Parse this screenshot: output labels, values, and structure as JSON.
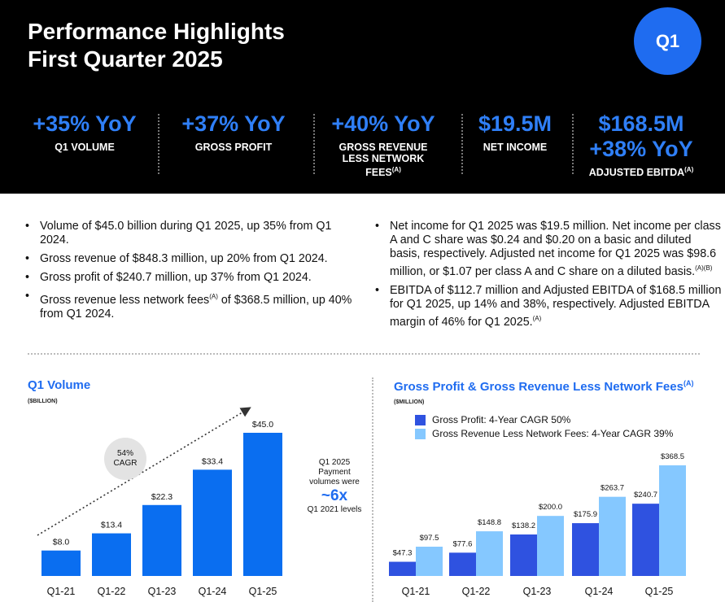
{
  "header": {
    "title_line1": "Performance Highlights",
    "title_line2": "First Quarter 2025",
    "badge": "Q1",
    "kpis": [
      {
        "value": "+35% YoY",
        "label": "Q1 VOLUME"
      },
      {
        "value": "+37% YoY",
        "label": "GROSS PROFIT"
      },
      {
        "value": "+40% YoY",
        "label": "GROSS REVENUE LESS NETWORK FEES",
        "sup": "(A)"
      },
      {
        "value": "$19.5M",
        "label": "NET INCOME"
      },
      {
        "value": "$168.5M",
        "value2": "+38% YoY",
        "label": "ADJUSTED EBITDA",
        "sup": "(A)"
      }
    ]
  },
  "bullets_left": [
    {
      "text": "Volume of $45.0 billion during Q1 2025, up 35% from Q1 2024."
    },
    {
      "text": "Gross revenue of $848.3 million, up 20% from Q1 2024."
    },
    {
      "text": "Gross profit of $240.7 million, up 37% from Q1 2024."
    },
    {
      "text_before": "Gross revenue less network fees",
      "sup": "(A)",
      "text_after": " of $368.5 million, up 40% from Q1 2024."
    }
  ],
  "bullets_right": [
    {
      "text": "Net income for Q1 2025 was $19.5 million. Net income per class A and C share was $0.24 and $0.20 on a basic and diluted basis, respectively. Adjusted net income for Q1 2025 was $98.6 million, or $1.07 per class A and C share on a diluted basis.",
      "sup": "(A)(B)"
    },
    {
      "text": "EBITDA of $112.7 million and Adjusted EBITDA of $168.5 million for Q1 2025, up 14% and 38%, respectively. Adjusted EBITDA margin of 46% for Q1 2025.",
      "sup": "(A)"
    }
  ],
  "volume_panel": {
    "cagr_value": "54%",
    "cagr_label": "CAGR",
    "note_line1": "Q1 2025",
    "note_line2": "Payment",
    "note_line3": "volumes were",
    "note_big": "~6x",
    "note_line4": "Q1 2021 levels"
  },
  "chart_data": [
    {
      "type": "bar",
      "title": "Q1 Volume",
      "ylabel": "($BILLION)",
      "categories": [
        "Q1-21",
        "Q1-22",
        "Q1-23",
        "Q1-24",
        "Q1-25"
      ],
      "values": [
        8.0,
        13.4,
        22.3,
        33.4,
        45.0
      ],
      "value_labels": [
        "$8.0",
        "$13.4",
        "$22.3",
        "$33.4",
        "$45.0"
      ],
      "ylim": [
        0,
        50
      ],
      "color": "#0a6ef0",
      "grid": false
    },
    {
      "type": "bar",
      "title": "Gross Profit & Gross Revenue Less Network Fees",
      "title_sup": "(A)",
      "ylabel": "($MILLION)",
      "categories": [
        "Q1-21",
        "Q1-22",
        "Q1-23",
        "Q1-24",
        "Q1-25"
      ],
      "series": [
        {
          "name": "Gross Profit: 4-Year CAGR 50%",
          "values": [
            47.3,
            77.6,
            138.2,
            175.9,
            240.7
          ],
          "value_labels": [
            "$47.3",
            "$77.6",
            "$138.2",
            "$175.9",
            "$240.7"
          ],
          "color": "#2f52e0"
        },
        {
          "name": "Gross Revenue Less Network Fees: 4-Year CAGR 39%",
          "values": [
            97.5,
            148.8,
            200.0,
            263.7,
            368.5
          ],
          "value_labels": [
            "$97.5",
            "$148.8",
            "$200.0",
            "$263.7",
            "$368.5"
          ],
          "color": "#85c8ff"
        }
      ],
      "ylim": [
        0,
        400
      ],
      "legend": "top-left",
      "grid": false
    }
  ]
}
